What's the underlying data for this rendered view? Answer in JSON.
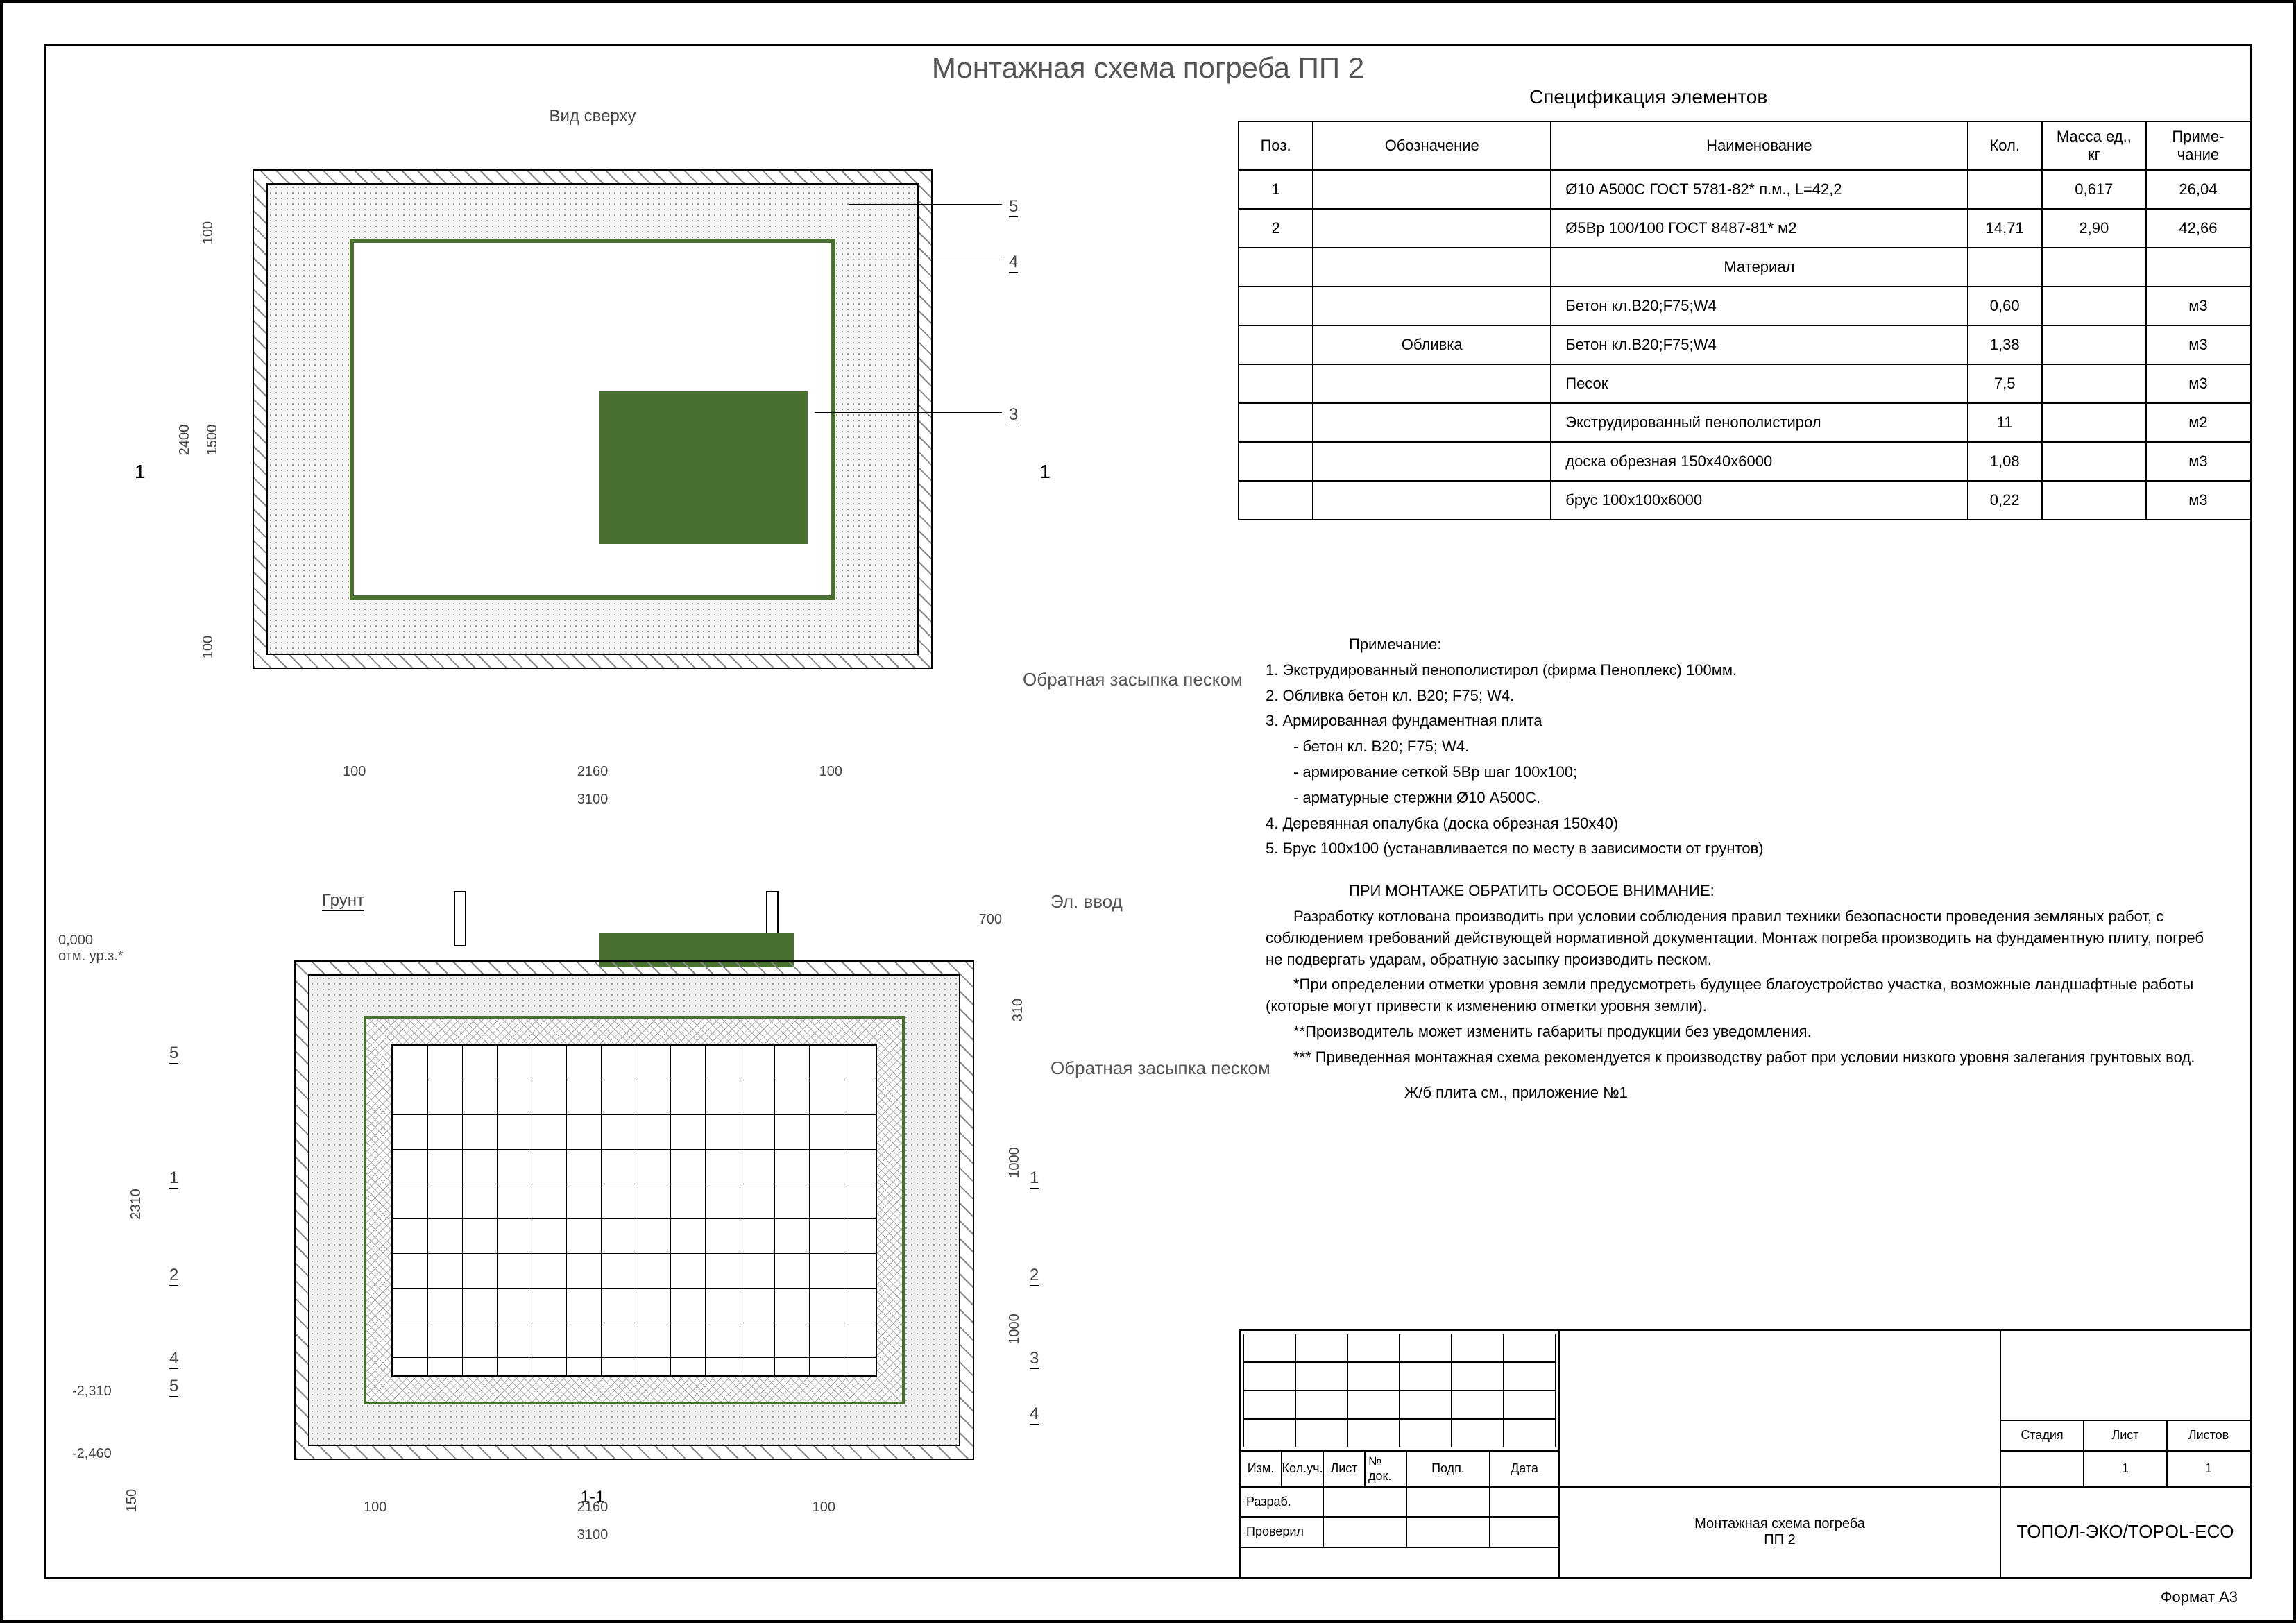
{
  "title": "Монтажная схема погреба ПП 2",
  "topview_label": "Вид сверху",
  "section_label": "1-1",
  "ground_label": "Грунт",
  "elvvod_label": "Эл. ввод",
  "backfill_label": "Обратная засыпка песком",
  "level_mark_zero": "0,000\nотм. ур.з.*",
  "level_mark_1": "-2,310",
  "level_mark_2": "-2,460",
  "dims_top": {
    "h_outer": "3100",
    "h_inner": "2160",
    "h_mg1": "100",
    "h_mg2": "100",
    "v_outer": "2400",
    "v_inner": "1500",
    "v_mg1": "100",
    "v_mg2": "100"
  },
  "dims_sec": {
    "h_outer": "3100",
    "h_inner": "2160",
    "h_mg1": "100",
    "h_mg2": "100",
    "v_total": "2310",
    "v_top": "310",
    "v_mid": "1000",
    "v_bot": "1000",
    "plate": "150",
    "top_off": "700"
  },
  "callouts": [
    "1",
    "2",
    "3",
    "4",
    "5"
  ],
  "spec_title": "Спецификация элементов",
  "spec_columns": [
    "Поз.",
    "Обозначение",
    "Наименование",
    "Кол.",
    "Масса ед., кг",
    "Приме-чание"
  ],
  "spec_rows": [
    [
      "1",
      "",
      "Ø10 А500С ГОСТ 5781-82* п.м., L=42,2",
      "",
      "0,617",
      "26,04"
    ],
    [
      "2",
      "",
      "Ø5Вр 100/100 ГОСТ 8487-81* м2",
      "14,71",
      "2,90",
      "42,66"
    ],
    [
      "",
      "",
      "Материал",
      "",
      "",
      ""
    ],
    [
      "",
      "",
      "Бетон кл.В20;F75;W4",
      "0,60",
      "",
      "м3"
    ],
    [
      "",
      "Обливка",
      "Бетон кл.В20;F75;W4",
      "1,38",
      "",
      "м3"
    ],
    [
      "",
      "",
      "Песок",
      "7,5",
      "",
      "м3"
    ],
    [
      "",
      "",
      "Экструдированный пенополистирол",
      "11",
      "",
      "м2"
    ],
    [
      "",
      "",
      "доска обрезная 150х40х6000",
      "1,08",
      "",
      "м3"
    ],
    [
      "",
      "",
      "брус 100х100х6000",
      "0,22",
      "",
      "м3"
    ]
  ],
  "notes_title": "Примечание:",
  "notes_list": [
    "1. Экструдированный пенополистирол (фирма Пеноплекс) 100мм.",
    "2. Обливка бетон кл. В20; F75; W4.",
    "3. Армированная фундаментная плита",
    "   - бетон кл. В20; F75; W4.",
    "   - армирование сеткой 5Вр шаг 100х100;",
    "   - арматурные стержни Ø10 А500С.",
    "4. Деревянная опалубка (доска обрезная 150х40)",
    "5. Брус 100х100 (устанавливается по месту в зависимости от грунтов)"
  ],
  "attention_title": "ПРИ МОНТАЖЕ ОБРАТИТЬ ОСОБОЕ ВНИМАНИЕ:",
  "attention_body": [
    "Разработку котлована производить при условии соблюдения правил техники безопасности проведения земляных работ, с соблюдением требований действующей нормативной документации. Монтаж погреба производить на фундаментную плиту, погреб не подвергать ударам, обратную засыпку производить песком.",
    "*При определении отметки уровня земли предусмотреть будущее благоустройство участка, возможные ландшафтные работы (которые могут привести к изменению отметки уровня земли).",
    "**Производитель может изменить габариты продукции без уведомления.",
    "*** Приведенная монтажная схема рекомендуется к производству работ при условии низкого уровня залегания грунтовых вод."
  ],
  "plate_ref": "Ж/б плита см., приложение №1",
  "tb": {
    "izm": "Изм.",
    "kolch": "Кол.уч.",
    "list": "Лист",
    "ndok": "№ док.",
    "podp": "Подп.",
    "data": "Дата",
    "razrab": "Разраб.",
    "proveril": "Проверил",
    "stage": "Стадия",
    "sheet": "Лист",
    "sheets": "Листов",
    "sheet_val": "1",
    "sheets_val": "1",
    "project_line1": "Монтажная схема погреба",
    "project_line2": "ПП 2",
    "company": "ТОПОЛ-ЭКО/TOPOL-ECO"
  },
  "format": "Формат    А3",
  "section_mark": "1"
}
